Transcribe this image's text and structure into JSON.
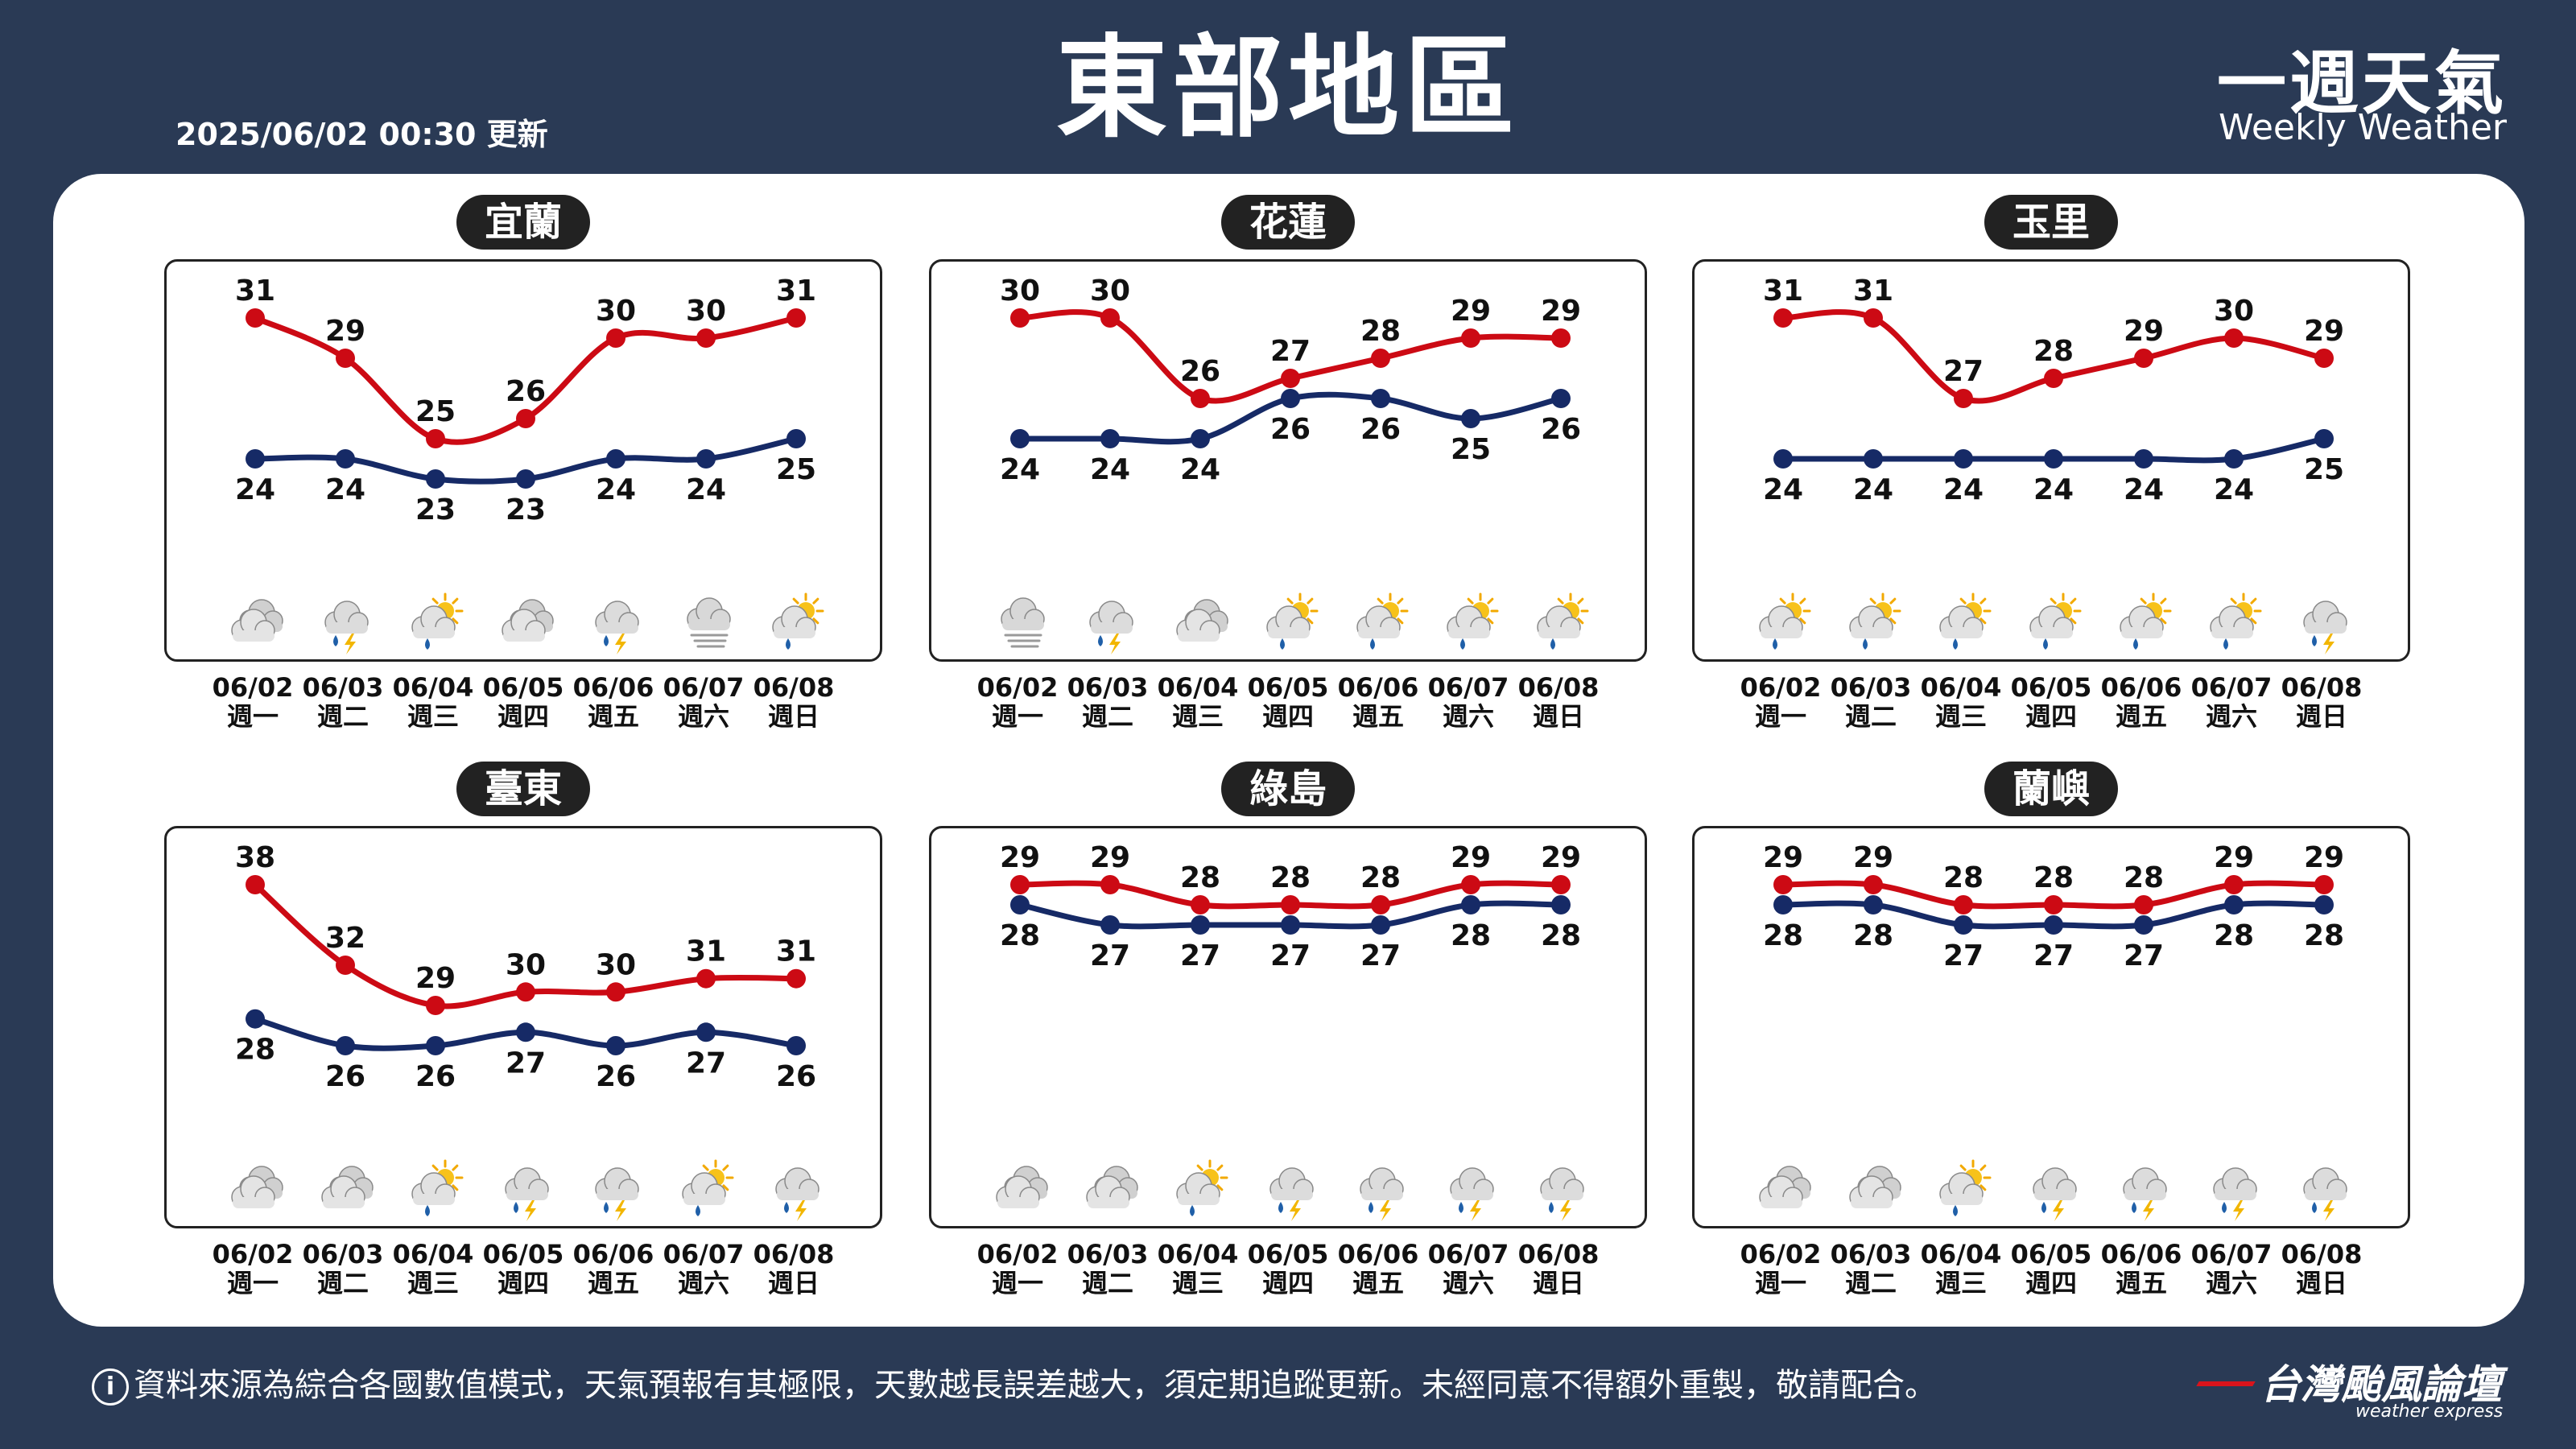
{
  "header": {
    "updated": "2025/06/02 00:30 更新",
    "title": "東部地區",
    "brand_cn": "一週天氣",
    "brand_en": "Weekly Weather"
  },
  "footer": {
    "notice": "資料來源為綜合各國數值模式，天氣預報有其極限，天數越長誤差越大，須定期追蹤更新。未經同意不得額外重製，敬請配合。",
    "logo": "台灣颱風論壇",
    "logo_sub": "weather express"
  },
  "colors": {
    "high": "#cc0a14",
    "low": "#162a66",
    "background": "#2a3a55"
  },
  "days": [
    {
      "date": "06/02",
      "weekday": "週一"
    },
    {
      "date": "06/03",
      "weekday": "週二"
    },
    {
      "date": "06/04",
      "weekday": "週三"
    },
    {
      "date": "06/05",
      "weekday": "週四"
    },
    {
      "date": "06/06",
      "weekday": "週五"
    },
    {
      "date": "06/07",
      "weekday": "週六"
    },
    {
      "date": "06/08",
      "weekday": "週日"
    }
  ],
  "chart_data": [
    {
      "type": "line",
      "title": "宜蘭",
      "categories": [
        "06/02",
        "06/03",
        "06/04",
        "06/05",
        "06/06",
        "06/07",
        "06/08"
      ],
      "series": [
        {
          "name": "high",
          "values": [
            31,
            29,
            25,
            26,
            30,
            30,
            31
          ]
        },
        {
          "name": "low",
          "values": [
            24,
            24,
            23,
            23,
            24,
            24,
            25
          ]
        }
      ],
      "icons": [
        "cloudy-icon",
        "thunder-rain-icon",
        "sun-cloud-rain-icon",
        "cloudy-icon",
        "thunder-rain-icon",
        "fog-icon",
        "sun-cloud-rain-icon"
      ]
    },
    {
      "type": "line",
      "title": "花蓮",
      "categories": [
        "06/02",
        "06/03",
        "06/04",
        "06/05",
        "06/06",
        "06/07",
        "06/08"
      ],
      "series": [
        {
          "name": "high",
          "values": [
            30,
            30,
            26,
            27,
            28,
            29,
            29
          ]
        },
        {
          "name": "low",
          "values": [
            24,
            24,
            24,
            26,
            26,
            25,
            26
          ]
        }
      ],
      "icons": [
        "fog-icon",
        "thunder-rain-icon",
        "cloudy-icon",
        "sun-cloud-rain-icon",
        "sun-cloud-rain-icon",
        "sun-cloud-rain-icon",
        "sun-cloud-rain-icon"
      ]
    },
    {
      "type": "line",
      "title": "玉里",
      "categories": [
        "06/02",
        "06/03",
        "06/04",
        "06/05",
        "06/06",
        "06/07",
        "06/08"
      ],
      "series": [
        {
          "name": "high",
          "values": [
            31,
            31,
            27,
            28,
            29,
            30,
            29
          ]
        },
        {
          "name": "low",
          "values": [
            24,
            24,
            24,
            24,
            24,
            24,
            25
          ]
        }
      ],
      "icons": [
        "sun-cloud-rain-icon",
        "sun-cloud-rain-icon",
        "sun-cloud-rain-icon",
        "sun-cloud-rain-icon",
        "sun-cloud-rain-icon",
        "sun-cloud-rain-icon",
        "thunder-rain-icon"
      ]
    },
    {
      "type": "line",
      "title": "臺東",
      "categories": [
        "06/02",
        "06/03",
        "06/04",
        "06/05",
        "06/06",
        "06/07",
        "06/08"
      ],
      "series": [
        {
          "name": "high",
          "values": [
            38,
            32,
            29,
            30,
            30,
            31,
            31
          ]
        },
        {
          "name": "low",
          "values": [
            28,
            26,
            26,
            27,
            26,
            27,
            26
          ]
        }
      ],
      "icons": [
        "cloudy-icon",
        "cloudy-icon",
        "sun-cloud-rain-icon",
        "thunder-rain-icon",
        "thunder-rain-icon",
        "sun-cloud-rain-icon",
        "thunder-rain-icon"
      ]
    },
    {
      "type": "line",
      "title": "綠島",
      "categories": [
        "06/02",
        "06/03",
        "06/04",
        "06/05",
        "06/06",
        "06/07",
        "06/08"
      ],
      "series": [
        {
          "name": "high",
          "values": [
            29,
            29,
            28,
            28,
            28,
            29,
            29
          ]
        },
        {
          "name": "low",
          "values": [
            28,
            27,
            27,
            27,
            27,
            28,
            28
          ]
        }
      ],
      "icons": [
        "cloudy-icon",
        "cloudy-icon",
        "sun-cloud-rain-icon",
        "thunder-rain-icon",
        "thunder-rain-icon",
        "thunder-rain-icon",
        "thunder-rain-icon"
      ]
    },
    {
      "type": "line",
      "title": "蘭嶼",
      "categories": [
        "06/02",
        "06/03",
        "06/04",
        "06/05",
        "06/06",
        "06/07",
        "06/08"
      ],
      "series": [
        {
          "name": "high",
          "values": [
            29,
            29,
            28,
            28,
            28,
            29,
            29
          ]
        },
        {
          "name": "low",
          "values": [
            28,
            28,
            27,
            27,
            27,
            28,
            28
          ]
        }
      ],
      "icons": [
        "cloudy-icon",
        "cloudy-icon",
        "sun-cloud-rain-icon",
        "thunder-rain-icon",
        "thunder-rain-icon",
        "thunder-rain-icon",
        "thunder-rain-icon"
      ]
    }
  ]
}
